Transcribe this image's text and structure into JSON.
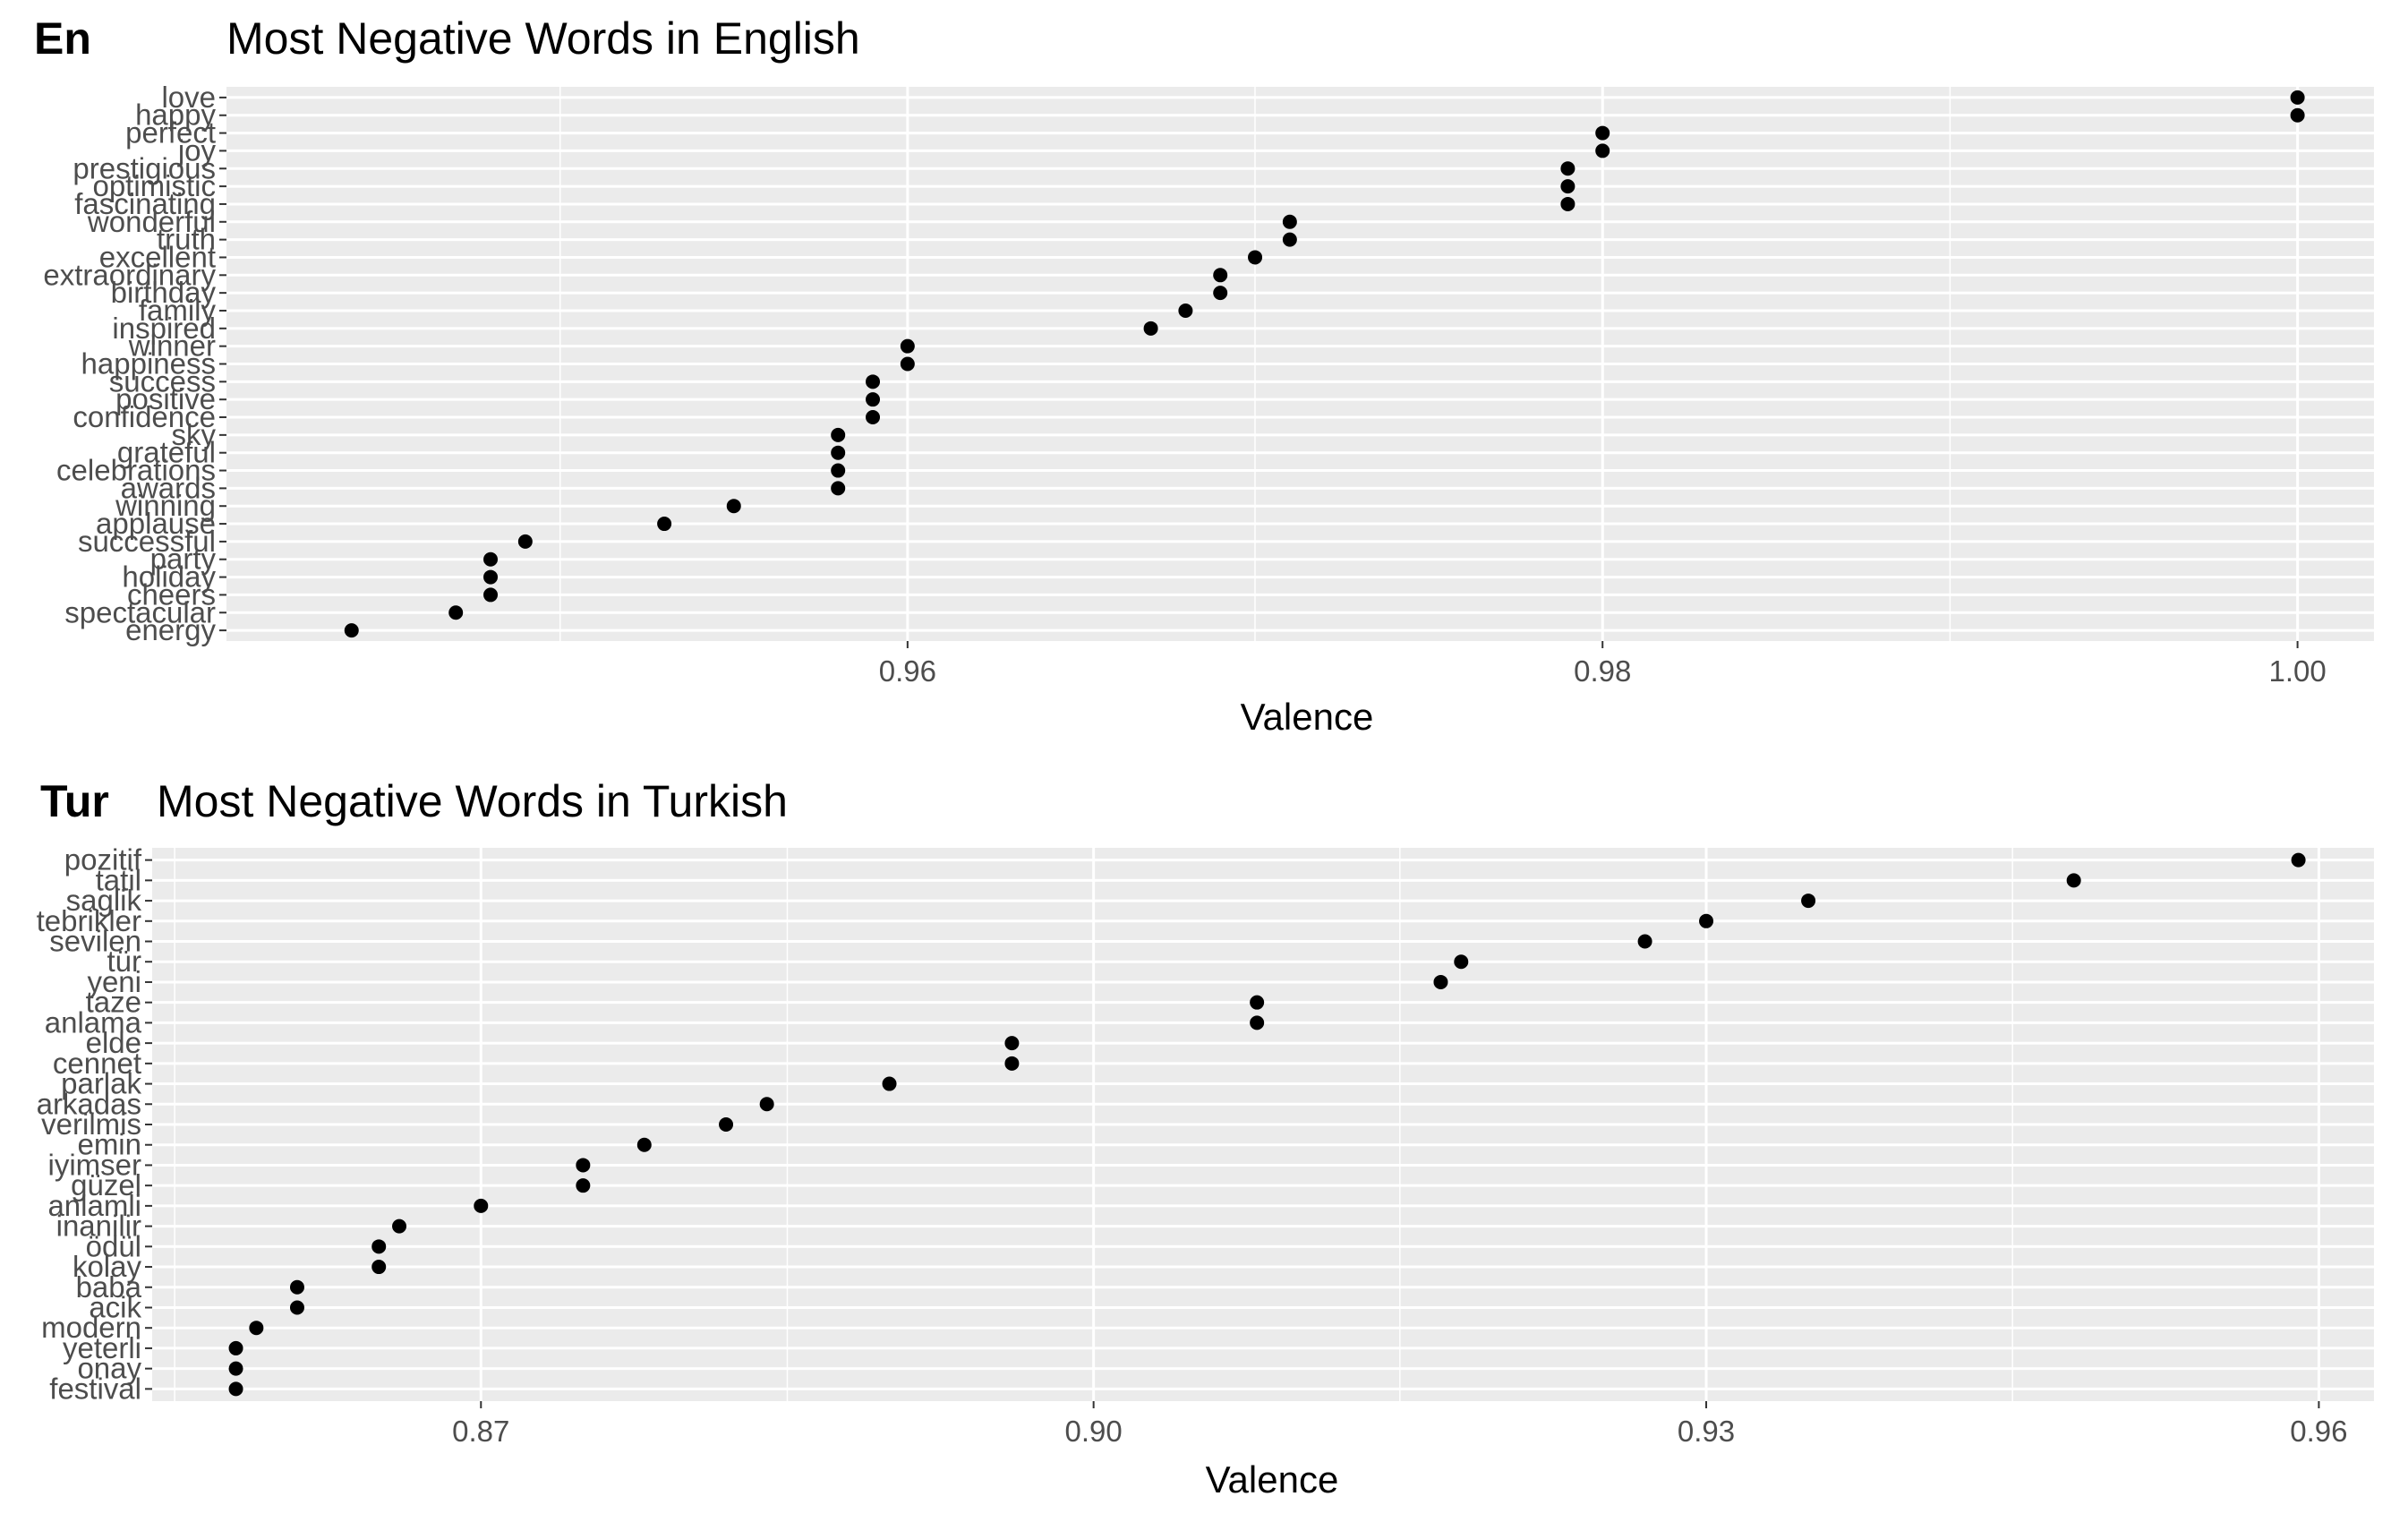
{
  "colors": {
    "panel": "#ebebeb",
    "grid": "#ffffff",
    "point": "#000000",
    "tick_text": "#4d4d4d",
    "tick_mark": "#333333"
  },
  "chart_data": [
    {
      "type": "scatter",
      "tag": "En",
      "title": "Most Negative Words in English",
      "xlabel": "Valence",
      "ylabel": "",
      "xlim": [
        0.9404,
        1.0022
      ],
      "xticks": [
        0.96,
        0.98,
        1.0
      ],
      "xtick_labels": [
        "0.96",
        "0.98",
        "1.00"
      ],
      "grid": true,
      "points": [
        {
          "word": "love",
          "valence": 1.0
        },
        {
          "word": "happy",
          "valence": 1.0
        },
        {
          "word": "perfect",
          "valence": 0.98
        },
        {
          "word": "joy",
          "valence": 0.98
        },
        {
          "word": "prestigious",
          "valence": 0.979
        },
        {
          "word": "optimistic",
          "valence": 0.979
        },
        {
          "word": "fascinating",
          "valence": 0.979
        },
        {
          "word": "wonderful",
          "valence": 0.971
        },
        {
          "word": "truth",
          "valence": 0.971
        },
        {
          "word": "excellent",
          "valence": 0.97
        },
        {
          "word": "extraordinary",
          "valence": 0.969
        },
        {
          "word": "birthday",
          "valence": 0.969
        },
        {
          "word": "family",
          "valence": 0.968
        },
        {
          "word": "inspired",
          "valence": 0.967
        },
        {
          "word": "winner",
          "valence": 0.96
        },
        {
          "word": "happiness",
          "valence": 0.96
        },
        {
          "word": "success",
          "valence": 0.959
        },
        {
          "word": "positive",
          "valence": 0.959
        },
        {
          "word": "confidence",
          "valence": 0.959
        },
        {
          "word": "sky",
          "valence": 0.958
        },
        {
          "word": "grateful",
          "valence": 0.958
        },
        {
          "word": "celebrations",
          "valence": 0.958
        },
        {
          "word": "awards",
          "valence": 0.958
        },
        {
          "word": "winning",
          "valence": 0.955
        },
        {
          "word": "applause",
          "valence": 0.953
        },
        {
          "word": "successful",
          "valence": 0.949
        },
        {
          "word": "party",
          "valence": 0.948
        },
        {
          "word": "holiday",
          "valence": 0.948
        },
        {
          "word": "cheers",
          "valence": 0.948
        },
        {
          "word": "spectacular",
          "valence": 0.947
        },
        {
          "word": "energy",
          "valence": 0.944
        }
      ]
    },
    {
      "type": "scatter",
      "tag": "Tur",
      "title": "Most Negative Words in Turkish",
      "xlabel": "Valence",
      "ylabel": "",
      "xlim": [
        0.8539,
        0.9627
      ],
      "xticks": [
        0.87,
        0.9,
        0.93,
        0.96
      ],
      "xtick_labels": [
        "0.87",
        "0.90",
        "0.93",
        "0.96"
      ],
      "grid": true,
      "points": [
        {
          "word": "pozitif",
          "valence": 0.959
        },
        {
          "word": "tatil",
          "valence": 0.948
        },
        {
          "word": "saglik",
          "valence": 0.935
        },
        {
          "word": "tebrikler",
          "valence": 0.93
        },
        {
          "word": "sevilen",
          "valence": 0.927
        },
        {
          "word": "tür",
          "valence": 0.918
        },
        {
          "word": "yeni",
          "valence": 0.917
        },
        {
          "word": "taze",
          "valence": 0.908
        },
        {
          "word": "anlama",
          "valence": 0.908
        },
        {
          "word": "elde",
          "valence": 0.896
        },
        {
          "word": "cennet",
          "valence": 0.896
        },
        {
          "word": "parlak",
          "valence": 0.89
        },
        {
          "word": "arkadas",
          "valence": 0.884
        },
        {
          "word": "verilmis",
          "valence": 0.882
        },
        {
          "word": "emin",
          "valence": 0.878
        },
        {
          "word": "iyimser",
          "valence": 0.875
        },
        {
          "word": "güzel",
          "valence": 0.875
        },
        {
          "word": "anlamli",
          "valence": 0.87
        },
        {
          "word": "inanilir",
          "valence": 0.866
        },
        {
          "word": "ödül",
          "valence": 0.865
        },
        {
          "word": "kolay",
          "valence": 0.865
        },
        {
          "word": "baba",
          "valence": 0.861
        },
        {
          "word": "acik",
          "valence": 0.861
        },
        {
          "word": "modern",
          "valence": 0.859
        },
        {
          "word": "yeterli",
          "valence": 0.858
        },
        {
          "word": "onay",
          "valence": 0.858
        },
        {
          "word": "festival",
          "valence": 0.858
        }
      ]
    }
  ]
}
